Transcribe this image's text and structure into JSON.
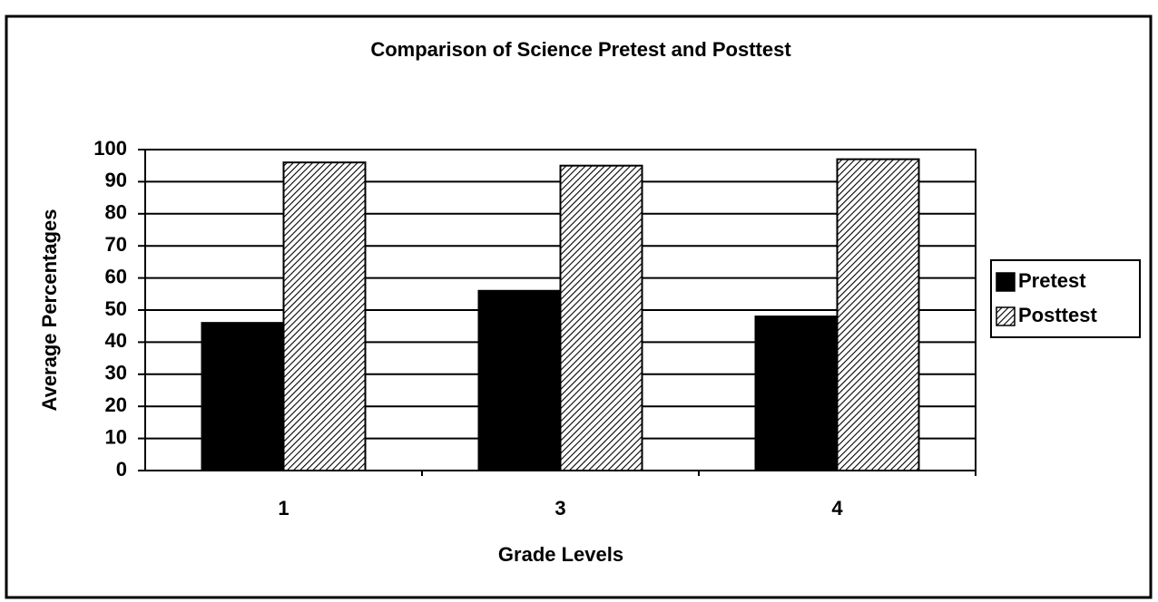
{
  "chart_data": {
    "type": "bar",
    "title": "Comparison of Science Pretest and Posttest",
    "x_label": "Grade Levels",
    "y_label": "Average Percentages",
    "categories": [
      "1",
      "3",
      "4"
    ],
    "series": [
      {
        "name": "Pretest",
        "color": "#000000",
        "values": [
          46,
          56,
          48
        ]
      },
      {
        "name": "Posttest",
        "color": "#000000",
        "pattern": "hatch",
        "values": [
          96,
          95,
          97
        ]
      }
    ],
    "ylim": [
      0,
      100
    ],
    "yticks": [
      0,
      10,
      20,
      30,
      40,
      50,
      60,
      70,
      80,
      90,
      100
    ],
    "grid": true,
    "legend": "right"
  }
}
